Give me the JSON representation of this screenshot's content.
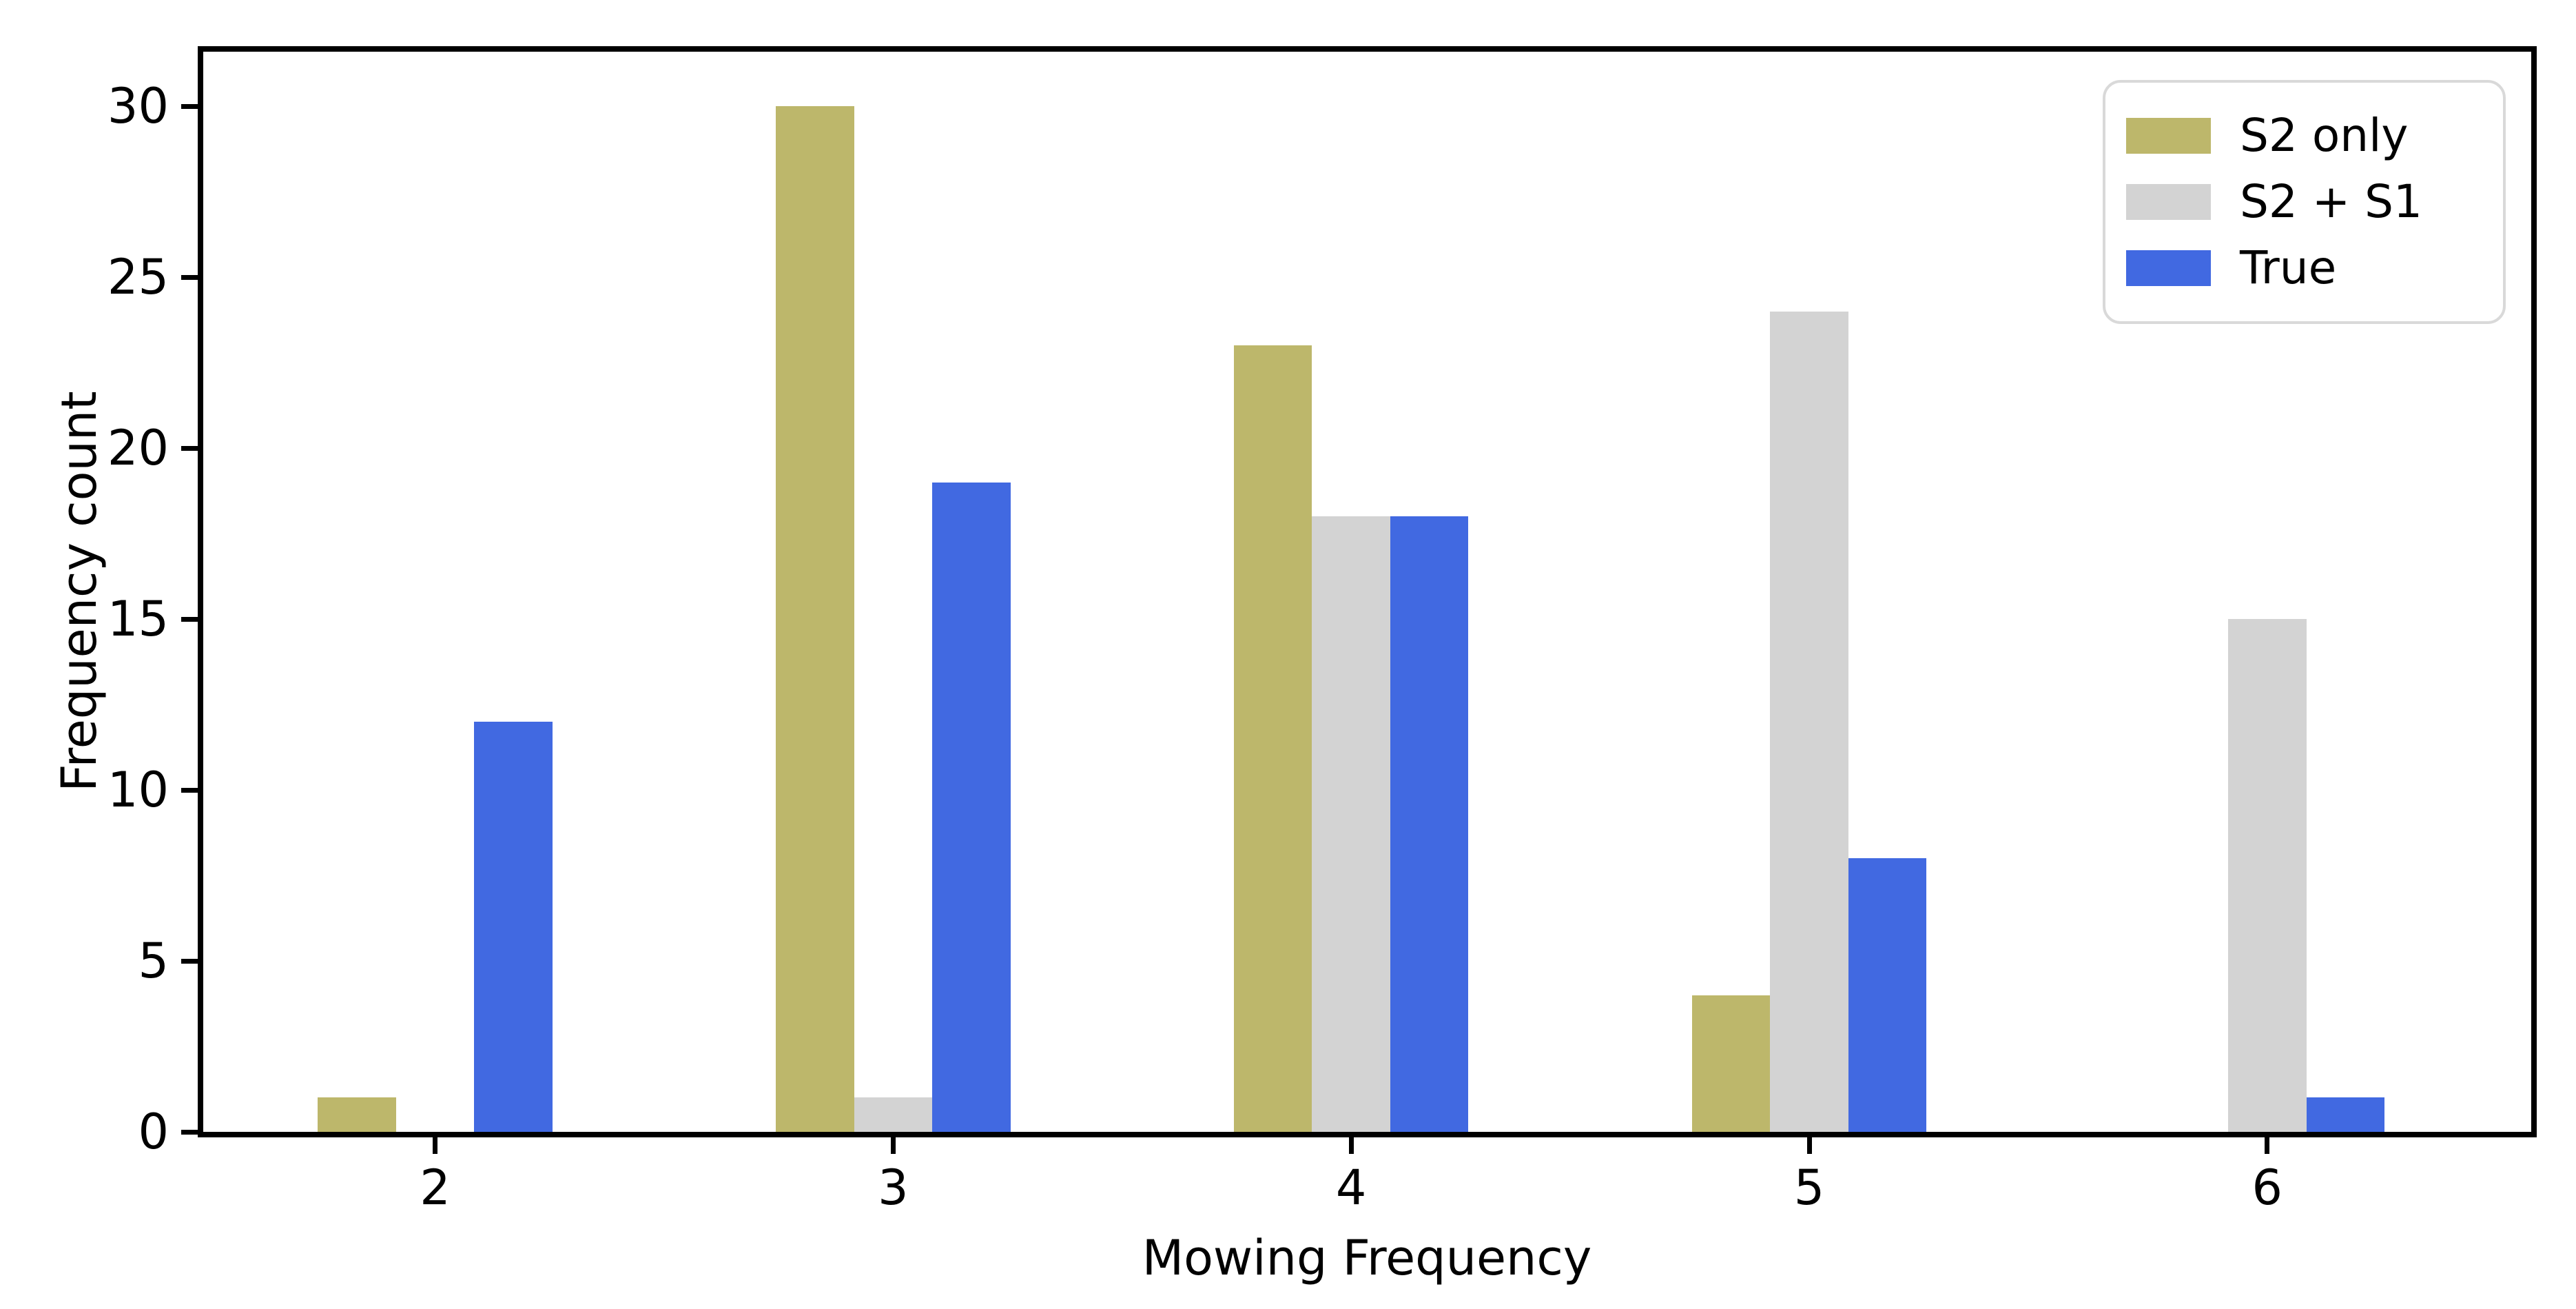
{
  "chart_data": {
    "type": "bar",
    "title": "",
    "xlabel": "Mowing Frequency",
    "ylabel": "Frequency count",
    "categories": [
      "2",
      "3",
      "4",
      "5",
      "6"
    ],
    "series": [
      {
        "name": "S2 only",
        "color": "#bdb76b",
        "values": [
          1,
          30,
          23,
          4,
          0
        ]
      },
      {
        "name": "S2 + S1",
        "color": "#d3d3d3",
        "values": [
          0,
          1,
          18,
          24,
          15
        ]
      },
      {
        "name": "True",
        "color": "#4169e1",
        "values": [
          12,
          19,
          18,
          8,
          1
        ]
      }
    ],
    "yticks": [
      0,
      5,
      10,
      15,
      20,
      25,
      30
    ],
    "ylim": [
      0,
      31.6
    ],
    "grid": false,
    "legend_position": "upper right",
    "axis_color": "#000000",
    "background_color": "#ffffff",
    "legend_border_color": "#d9d9d9"
  }
}
